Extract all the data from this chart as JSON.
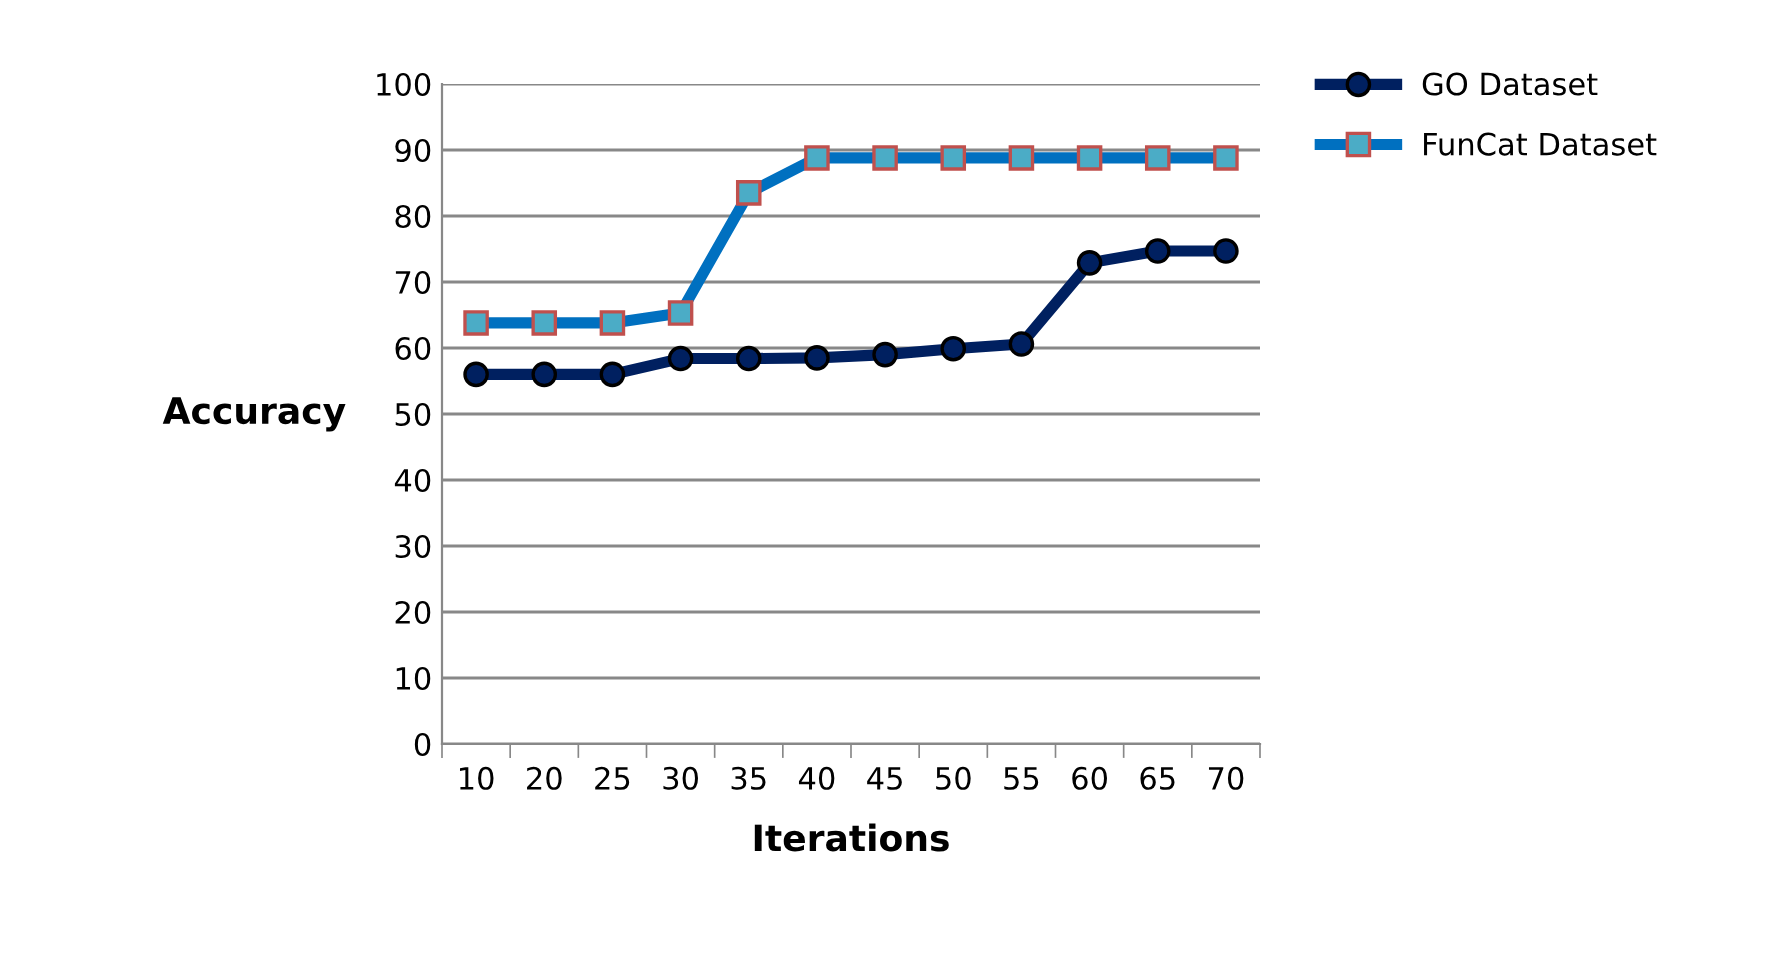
{
  "chart_data": {
    "type": "line",
    "xlabel": "Iterations",
    "ylabel": "Accuracy",
    "categories": [
      "10",
      "20",
      "25",
      "30",
      "35",
      "40",
      "45",
      "50",
      "55",
      "60",
      "65",
      "70"
    ],
    "series": [
      {
        "name": "GO Dataset",
        "color": "#002060",
        "marker": "circle",
        "values": [
          56,
          56,
          56,
          58.4,
          58.4,
          58.5,
          59,
          59.9,
          60.6,
          72.9,
          74.7,
          74.7
        ]
      },
      {
        "name": "FunCat Dataset",
        "color": "#0070c0",
        "marker": "square",
        "values": [
          63.8,
          63.8,
          63.8,
          65.3,
          83.5,
          88.8,
          88.8,
          88.8,
          88.8,
          88.8,
          88.8,
          88.8
        ]
      }
    ],
    "ylim": [
      0,
      100
    ],
    "yticks": [
      0,
      10,
      20,
      30,
      40,
      50,
      60,
      70,
      80,
      90,
      100
    ],
    "grid": "y",
    "legend": "top right"
  }
}
